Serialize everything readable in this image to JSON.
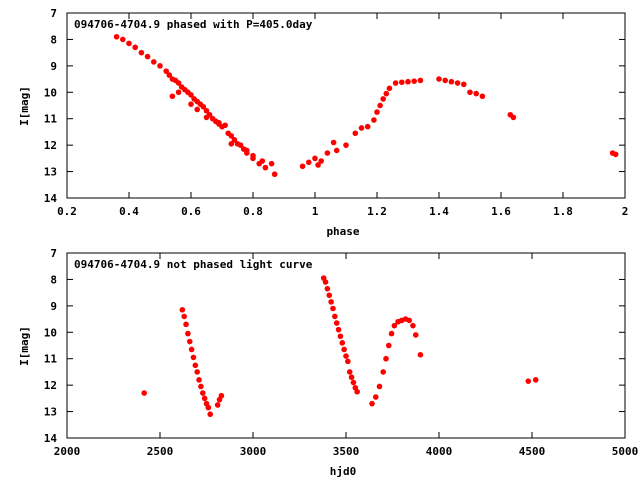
{
  "chart_data": [
    {
      "type": "scatter",
      "title": "094706-4704.9 phased with P=405.0day",
      "xlabel": "phase",
      "ylabel": "I[mag]",
      "xlim": [
        0.2,
        2.0
      ],
      "ylim": [
        7,
        14
      ],
      "y_inverted": true,
      "grid": false,
      "point_color": "#ff0000",
      "xticks": [
        0.2,
        0.4,
        0.6,
        0.8,
        1.0,
        1.2,
        1.4,
        1.6,
        1.8,
        2.0
      ],
      "xtick_labels": [
        "0.2",
        "0.4",
        "0.6",
        "0.8",
        "1",
        "1.2",
        "1.4",
        "1.6",
        "1.8",
        "2"
      ],
      "yticks": [
        7,
        8,
        9,
        10,
        11,
        12,
        13,
        14
      ],
      "ytick_labels": [
        "7",
        "8",
        "9",
        "10",
        "11",
        "12",
        "13",
        "14"
      ],
      "series": [
        {
          "points": [
            [
              0.36,
              7.9
            ],
            [
              0.38,
              8.0
            ],
            [
              0.4,
              8.15
            ],
            [
              0.42,
              8.3
            ],
            [
              0.44,
              8.5
            ],
            [
              0.46,
              8.65
            ],
            [
              0.48,
              8.85
            ],
            [
              0.5,
              9.0
            ],
            [
              0.52,
              9.2
            ],
            [
              0.53,
              9.35
            ],
            [
              0.54,
              9.5
            ],
            [
              0.55,
              9.55
            ],
            [
              0.56,
              9.65
            ],
            [
              0.57,
              9.8
            ],
            [
              0.58,
              9.9
            ],
            [
              0.59,
              10.0
            ],
            [
              0.6,
              10.1
            ],
            [
              0.61,
              10.25
            ],
            [
              0.62,
              10.35
            ],
            [
              0.63,
              10.45
            ],
            [
              0.64,
              10.55
            ],
            [
              0.65,
              10.7
            ],
            [
              0.66,
              10.85
            ],
            [
              0.67,
              11.0
            ],
            [
              0.68,
              11.1
            ],
            [
              0.69,
              11.2
            ],
            [
              0.7,
              11.3
            ],
            [
              0.72,
              11.55
            ],
            [
              0.73,
              11.65
            ],
            [
              0.74,
              11.8
            ],
            [
              0.76,
              12.0
            ],
            [
              0.77,
              12.15
            ],
            [
              0.78,
              12.3
            ],
            [
              0.8,
              12.5
            ],
            [
              0.82,
              12.7
            ],
            [
              0.84,
              12.85
            ],
            [
              0.87,
              13.1
            ],
            [
              0.54,
              10.15
            ],
            [
              0.56,
              10.0
            ],
            [
              0.6,
              10.45
            ],
            [
              0.62,
              10.65
            ],
            [
              0.65,
              10.95
            ],
            [
              0.69,
              11.15
            ],
            [
              0.71,
              11.25
            ],
            [
              0.73,
              11.95
            ],
            [
              0.75,
              11.95
            ],
            [
              0.78,
              12.2
            ],
            [
              0.8,
              12.4
            ],
            [
              0.83,
              12.6
            ],
            [
              0.86,
              12.7
            ],
            [
              0.96,
              12.8
            ],
            [
              0.98,
              12.65
            ],
            [
              1.0,
              12.5
            ],
            [
              1.01,
              12.75
            ],
            [
              1.02,
              12.6
            ],
            [
              1.04,
              12.3
            ],
            [
              1.06,
              11.9
            ],
            [
              1.07,
              12.2
            ],
            [
              1.1,
              12.0
            ],
            [
              1.13,
              11.55
            ],
            [
              1.15,
              11.35
            ],
            [
              1.17,
              11.3
            ],
            [
              1.19,
              11.05
            ],
            [
              1.2,
              10.75
            ],
            [
              1.21,
              10.5
            ],
            [
              1.22,
              10.25
            ],
            [
              1.23,
              10.05
            ],
            [
              1.24,
              9.85
            ],
            [
              1.26,
              9.65
            ],
            [
              1.28,
              9.62
            ],
            [
              1.3,
              9.6
            ],
            [
              1.32,
              9.58
            ],
            [
              1.34,
              9.55
            ],
            [
              1.4,
              9.5
            ],
            [
              1.42,
              9.55
            ],
            [
              1.44,
              9.6
            ],
            [
              1.46,
              9.65
            ],
            [
              1.48,
              9.7
            ],
            [
              1.5,
              10.0
            ],
            [
              1.52,
              10.05
            ],
            [
              1.54,
              10.15
            ],
            [
              1.63,
              10.85
            ],
            [
              1.64,
              10.95
            ],
            [
              1.96,
              12.3
            ],
            [
              1.97,
              12.35
            ]
          ]
        }
      ]
    },
    {
      "type": "scatter",
      "title": "094706-4704.9 not phased light curve",
      "xlabel": "hjd0",
      "ylabel": "I[mag]",
      "xlim": [
        2000,
        5000
      ],
      "ylim": [
        7,
        14
      ],
      "y_inverted": true,
      "grid": false,
      "point_color": "#ff0000",
      "xticks": [
        2000,
        2500,
        3000,
        3500,
        4000,
        4500,
        5000
      ],
      "xtick_labels": [
        "2000",
        "2500",
        "3000",
        "3500",
        "4000",
        "4500",
        "5000"
      ],
      "yticks": [
        7,
        8,
        9,
        10,
        11,
        12,
        13,
        14
      ],
      "ytick_labels": [
        "7",
        "8",
        "9",
        "10",
        "11",
        "12",
        "13",
        "14"
      ],
      "series": [
        {
          "points": [
            [
              2415,
              12.3
            ],
            [
              2620,
              9.15
            ],
            [
              2630,
              9.4
            ],
            [
              2640,
              9.7
            ],
            [
              2650,
              10.05
            ],
            [
              2660,
              10.35
            ],
            [
              2670,
              10.65
            ],
            [
              2680,
              10.95
            ],
            [
              2690,
              11.25
            ],
            [
              2700,
              11.5
            ],
            [
              2710,
              11.8
            ],
            [
              2720,
              12.05
            ],
            [
              2730,
              12.3
            ],
            [
              2740,
              12.5
            ],
            [
              2750,
              12.7
            ],
            [
              2760,
              12.85
            ],
            [
              2770,
              13.1
            ],
            [
              2810,
              12.75
            ],
            [
              2820,
              12.55
            ],
            [
              2830,
              12.4
            ],
            [
              3380,
              7.95
            ],
            [
              3390,
              8.1
            ],
            [
              3400,
              8.35
            ],
            [
              3410,
              8.6
            ],
            [
              3420,
              8.85
            ],
            [
              3430,
              9.1
            ],
            [
              3440,
              9.4
            ],
            [
              3450,
              9.65
            ],
            [
              3460,
              9.9
            ],
            [
              3470,
              10.15
            ],
            [
              3480,
              10.4
            ],
            [
              3490,
              10.65
            ],
            [
              3500,
              10.9
            ],
            [
              3510,
              11.1
            ],
            [
              3520,
              11.5
            ],
            [
              3530,
              11.7
            ],
            [
              3540,
              11.9
            ],
            [
              3550,
              12.1
            ],
            [
              3560,
              12.25
            ],
            [
              3640,
              12.7
            ],
            [
              3660,
              12.45
            ],
            [
              3680,
              12.05
            ],
            [
              3700,
              11.5
            ],
            [
              3715,
              11.0
            ],
            [
              3730,
              10.5
            ],
            [
              3745,
              10.05
            ],
            [
              3760,
              9.75
            ],
            [
              3780,
              9.6
            ],
            [
              3800,
              9.55
            ],
            [
              3820,
              9.5
            ],
            [
              3840,
              9.55
            ],
            [
              3860,
              9.75
            ],
            [
              3875,
              10.1
            ],
            [
              3900,
              10.85
            ],
            [
              4480,
              11.85
            ],
            [
              4520,
              11.8
            ]
          ]
        }
      ]
    }
  ]
}
